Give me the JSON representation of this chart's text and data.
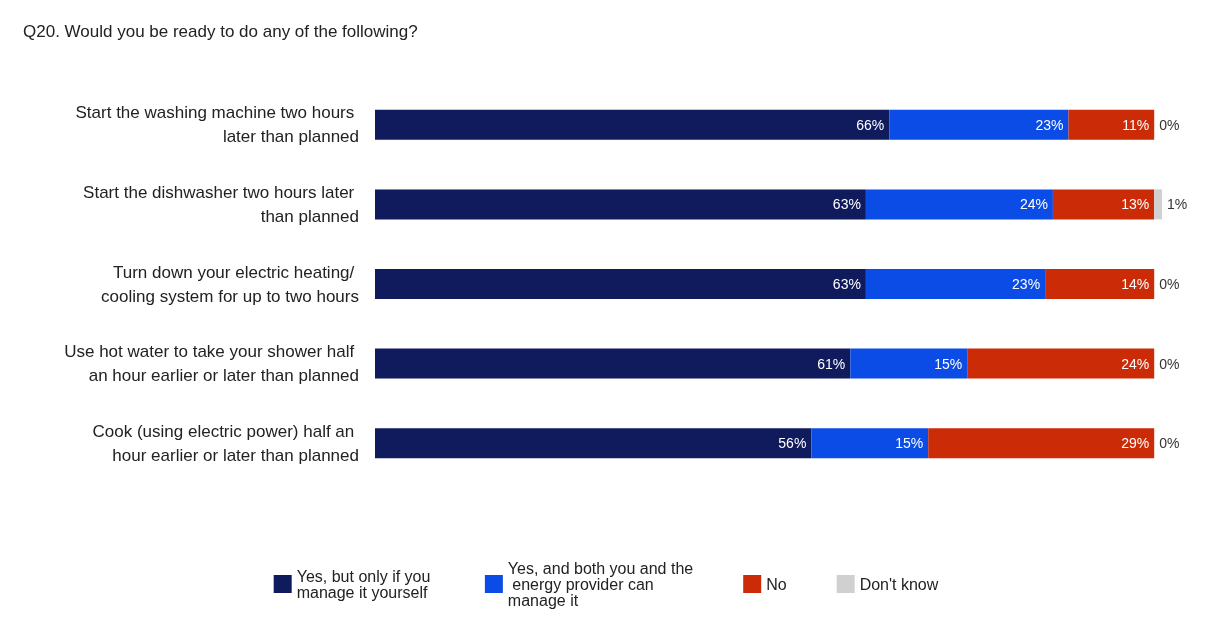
{
  "chart_data": {
    "type": "bar",
    "orientation": "horizontal",
    "stacked": true,
    "title": "Q20. Would you be ready to do any of the following?",
    "categories": [
      "Start the washing machine two hours later than planned",
      "Start the dishwasher two hours later than planned",
      "Turn down your electric heating/ cooling system for up to two hours",
      "Use hot water to take your shower half an hour earlier or later than planned",
      "Cook (using electric power) half an hour earlier or later than planned"
    ],
    "series": [
      {
        "name": "Yes, but only if you manage it yourself",
        "color": "#101b5e",
        "values": [
          66,
          63,
          63,
          61,
          56
        ],
        "value_labels": [
          "66%",
          "63%",
          "63%",
          "61%",
          "56%"
        ]
      },
      {
        "name": "Yes, and both you and the energy provider can manage it",
        "color": "#0b4ce6",
        "values": [
          23,
          24,
          23,
          15,
          15
        ],
        "value_labels": [
          "23%",
          "24%",
          "23%",
          "15%",
          "15%"
        ]
      },
      {
        "name": "No",
        "color": "#cc2b07",
        "values": [
          11,
          13,
          14,
          24,
          29
        ],
        "value_labels": [
          "11%",
          "13%",
          "14%",
          "24%",
          "29%"
        ]
      },
      {
        "name": "Don't know",
        "color": "#d0d0d0",
        "values": [
          0,
          1,
          0,
          0,
          0
        ],
        "value_labels": [
          "0%",
          "1%",
          "0%",
          "0%",
          "0%"
        ]
      }
    ],
    "tick_labels": "y",
    "legend": "bottom"
  }
}
